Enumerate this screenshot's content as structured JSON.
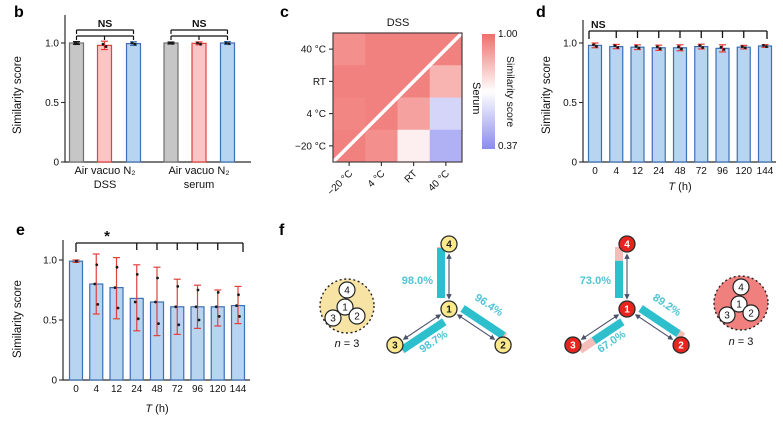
{
  "panels": {
    "b": {
      "letter": "b",
      "ylabel": "Similarity score"
    },
    "c": {
      "letter": "c",
      "title": "DSS",
      "side_label": "Serum",
      "colorbar_max": "1.00",
      "colorbar_min": "0.37",
      "colorbar_label": "Similarity score"
    },
    "d": {
      "letter": "d",
      "ylabel": "Similarity score",
      "xlabel_italic": "T",
      "xlabel_rest": " (h)"
    },
    "e": {
      "letter": "e",
      "ylabel": "Similarity score",
      "xlabel_italic": "T",
      "xlabel_rest": " (h)"
    },
    "f": {
      "letter": "f",
      "left_n_italic": "n",
      "left_n_rest": " = 3",
      "right_n_italic": "n",
      "right_n_rest": " = 3"
    }
  },
  "chart_data": [
    {
      "panel": "b",
      "type": "bar",
      "title": "",
      "ylabel": "Similarity score",
      "ylim": [
        0,
        1.15
      ],
      "yticks": [
        {
          "value": 0,
          "label": "0"
        },
        {
          "value": 0.5,
          "label": "0.5"
        },
        {
          "value": 1.0,
          "label": "1.0"
        }
      ],
      "groups": [
        {
          "top_label": "Air vacuo N₂",
          "bottom_label": "DSS",
          "significance": "NS",
          "bars": [
            {
              "condition": "Air",
              "value": 1.0,
              "err": 0.012,
              "dots": [
                1.0,
                0.995
              ],
              "fill": "#c6c6c6",
              "stroke": "#6f6f6f",
              "err_color": "#1a1a1a"
            },
            {
              "condition": "vacuo",
              "value": 0.98,
              "err": 0.035,
              "dots": [
                0.99,
                0.97
              ],
              "fill": "#f9c5c6",
              "stroke": "#e2403d",
              "err_color": "#e2403d"
            },
            {
              "condition": "N₂",
              "value": 0.995,
              "err": 0.015,
              "dots": [
                1.0,
                0.99
              ],
              "fill": "#b7d4f1",
              "stroke": "#3d70b4",
              "err_color": "#3d70b4"
            }
          ]
        },
        {
          "top_label": "Air vacuo N₂",
          "bottom_label": "serum",
          "significance": "NS",
          "bars": [
            {
              "condition": "Air",
              "value": 1.0,
              "err": 0.008,
              "dots": [
                1.0,
                0.997
              ],
              "fill": "#c6c6c6",
              "stroke": "#6f6f6f",
              "err_color": "#1a1a1a"
            },
            {
              "condition": "vacuo",
              "value": 0.997,
              "err": 0.012,
              "dots": [
                1.0,
                0.99
              ],
              "fill": "#f9c5c6",
              "stroke": "#e2403d",
              "err_color": "#e2403d"
            },
            {
              "condition": "N₂",
              "value": 1.0,
              "err": 0.012,
              "dots": [
                1.0,
                0.995
              ],
              "fill": "#b7d4f1",
              "stroke": "#3d70b4",
              "err_color": "#3d70b4"
            }
          ]
        }
      ]
    },
    {
      "panel": "c",
      "type": "heatmap",
      "title": "DSS",
      "lower_triangle_label": "Serum",
      "row_labels": [
        "40 °C",
        "RT",
        "4 °C",
        "−20 °C"
      ],
      "col_labels": [
        "−20 °C",
        "4 °C",
        "RT",
        "40 °C"
      ],
      "values": [
        [
          0.93,
          0.96,
          0.96,
          0.96
        ],
        [
          0.96,
          0.96,
          0.96,
          0.85
        ],
        [
          0.95,
          0.96,
          0.89,
          0.57
        ],
        [
          0.96,
          0.93,
          0.72,
          0.47
        ]
      ],
      "colorbar": {
        "label": "Similarity score",
        "max_label": "1.00",
        "min_label": "0.37",
        "vmax": 1.0,
        "vmin": 0.37,
        "color_high": "#ef6f6b",
        "color_mid": "#ffffff",
        "color_low": "#8b8bef"
      }
    },
    {
      "panel": "d",
      "type": "bar",
      "ylabel": "Similarity score",
      "xlabel": "T (h)",
      "categories": [
        "0",
        "4",
        "12",
        "24",
        "48",
        "72",
        "96",
        "120",
        "144"
      ],
      "values": [
        0.98,
        0.97,
        0.965,
        0.96,
        0.96,
        0.97,
        0.955,
        0.965,
        0.975
      ],
      "errors": [
        0.02,
        0.018,
        0.02,
        0.022,
        0.025,
        0.02,
        0.03,
        0.015,
        0.012
      ],
      "dots": [
        [
          0.985,
          0.972
        ],
        [
          0.978,
          0.963
        ],
        [
          0.972,
          0.958
        ],
        [
          0.968,
          0.952
        ],
        [
          0.968,
          0.95
        ],
        [
          0.978,
          0.962
        ],
        [
          0.965,
          0.945
        ],
        [
          0.97,
          0.96
        ],
        [
          0.98,
          0.97
        ]
      ],
      "ylim": [
        0,
        1.15
      ],
      "yticks": [
        {
          "value": 0,
          "label": "0"
        },
        {
          "value": 0.5,
          "label": "0.5"
        },
        {
          "value": 1.0,
          "label": "1.0"
        }
      ],
      "significance": {
        "label": "NS",
        "from_index": 0,
        "to_index": 8,
        "tick_indices": [
          1,
          2,
          3,
          4,
          5,
          6,
          7
        ]
      },
      "bar_fill": "#b7d4f1",
      "bar_stroke": "#3d70b4",
      "err_color": "#e2403d",
      "dot_color": "#1a1a1a"
    },
    {
      "panel": "e",
      "type": "bar",
      "ylabel": "Similarity score",
      "xlabel": "T (h)",
      "categories": [
        "0",
        "4",
        "12",
        "24",
        "48",
        "72",
        "96",
        "120",
        "144"
      ],
      "values": [
        0.99,
        0.8,
        0.77,
        0.68,
        0.65,
        0.61,
        0.61,
        0.61,
        0.62
      ],
      "err_low": [
        0.01,
        0.25,
        0.26,
        0.27,
        0.28,
        0.23,
        0.18,
        0.16,
        0.15
      ],
      "err_high": [
        0.01,
        0.25,
        0.25,
        0.28,
        0.29,
        0.23,
        0.18,
        0.14,
        0.16
      ],
      "dots": [
        [
          0.99
        ],
        [
          0.96,
          0.8,
          0.63
        ],
        [
          0.94,
          0.77,
          0.6
        ],
        [
          0.88,
          0.65,
          0.51
        ],
        [
          0.85,
          0.65,
          0.47
        ],
        [
          0.78,
          0.61,
          0.46
        ],
        [
          0.75,
          0.61,
          0.5
        ],
        [
          0.73,
          0.61,
          0.53
        ],
        [
          0.71,
          0.62,
          0.53
        ]
      ],
      "ylim": [
        0,
        1.15
      ],
      "yticks": [
        {
          "value": 0,
          "label": "0"
        },
        {
          "value": 0.5,
          "label": "0.5"
        },
        {
          "value": 1.0,
          "label": "1.0"
        }
      ],
      "significance": {
        "label": "*",
        "from_index": 0,
        "to_index": 8,
        "tick_indices": [
          3,
          4,
          5,
          6,
          7
        ]
      },
      "bar_fill": "#b7d4f1",
      "bar_stroke": "#3d70b4",
      "err_color": "#e2403d",
      "dot_color": "#1a1a1a"
    }
  ],
  "panel_f": {
    "percent_color": "#4fc4d6",
    "bar_color": "#2ebfcd",
    "bar_remainder_color": "#f6bcb8",
    "arrow_color": "#4b5168",
    "networks": [
      {
        "side": "left",
        "cluster_fill": "#f7e3a4",
        "cluster_node_labels": [
          "4",
          "1",
          "3",
          "2"
        ],
        "node_fill": "#fce98e",
        "node_label_color": "#1a1a1a",
        "node_stroke": "#2b2b2b",
        "center_node": "1",
        "n_label": "n = 3",
        "edges": [
          {
            "to_node": "4",
            "percent": "98.0%",
            "fraction": 0.98
          },
          {
            "to_node": "2",
            "percent": "96.4%",
            "fraction": 0.964
          },
          {
            "to_node": "3",
            "percent": "98.7%",
            "fraction": 0.987
          }
        ]
      },
      {
        "side": "right",
        "cluster_fill": "#ef807e",
        "cluster_node_labels": [
          "4",
          "1",
          "3",
          "2"
        ],
        "node_fill": "#e8241f",
        "node_label_color": "#ffffff",
        "node_stroke": "#2b2b2b",
        "center_node": "1",
        "n_label": "n = 3",
        "edges": [
          {
            "to_node": "4",
            "percent": "73.0%",
            "fraction": 0.73
          },
          {
            "to_node": "2",
            "percent": "89.2%",
            "fraction": 0.892
          },
          {
            "to_node": "3",
            "percent": "67.0%",
            "fraction": 0.67
          }
        ]
      }
    ]
  }
}
